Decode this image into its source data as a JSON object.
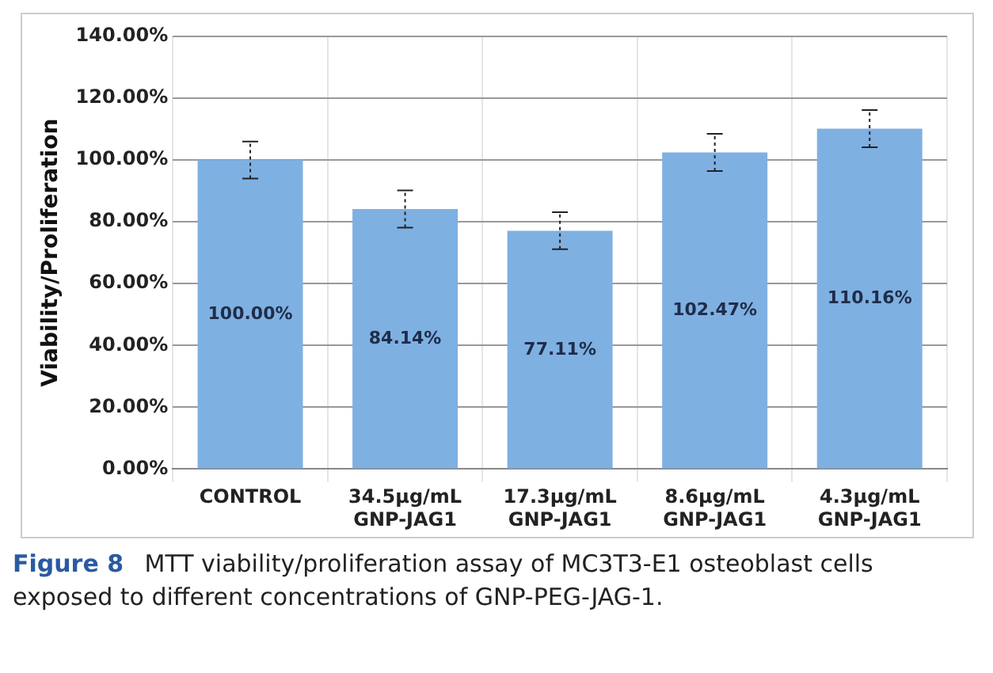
{
  "chart_data": {
    "type": "bar",
    "ylabel": "Viability/Proliferation",
    "categories": [
      "CONTROL",
      "34.5μg/mL GNP-JAG1",
      "17.3μg/mL GNP-JAG1",
      "8.6μg/mL GNP-JAG1",
      "4.3μg/mL GNP-JAG1"
    ],
    "values": [
      100,
      84.14,
      77.11,
      102.47,
      110.16
    ],
    "value_labels": [
      "100.00%",
      "84.14%",
      "77.11%",
      "102.47%",
      "110.16%"
    ],
    "errors": [
      6,
      6,
      6,
      6,
      6
    ],
    "color": "#7fb0e2",
    "ylim": [
      0,
      140
    ],
    "yticks": [
      {
        "value": 0,
        "label": "0.00%"
      },
      {
        "value": 20,
        "label": "20.00%"
      },
      {
        "value": 40,
        "label": "40.00%"
      },
      {
        "value": 60,
        "label": "60.00%"
      },
      {
        "value": 80,
        "label": "80.00%"
      },
      {
        "value": 100,
        "label": "100.00%"
      },
      {
        "value": 120,
        "label": "120.00%"
      },
      {
        "value": 140,
        "label": "140.00%"
      }
    ],
    "grid": true,
    "annotations": [
      "Figure 8",
      "MTT viability/proliferation assay of MC3T3-E1 osteoblast cells exposed to different concentrations of GNP-PEG-JAG-1."
    ]
  }
}
